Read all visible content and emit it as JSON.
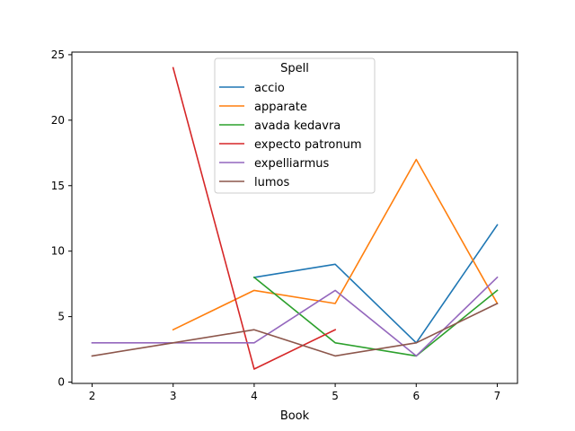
{
  "chart_data": {
    "type": "line",
    "title": "",
    "xlabel": "Book",
    "ylabel": "",
    "xlim": [
      1.75,
      7.25
    ],
    "ylim": [
      -0.1,
      25.2
    ],
    "xticks": [
      2,
      3,
      4,
      5,
      6,
      7
    ],
    "yticks": [
      0,
      5,
      10,
      15,
      20,
      25
    ],
    "grid": false,
    "legend": {
      "title": "Spell",
      "placement": "top-center"
    },
    "series": [
      {
        "name": "accio",
        "color": "#1f77b4",
        "points": [
          [
            4,
            8
          ],
          [
            5,
            9
          ],
          [
            6,
            3
          ],
          [
            7,
            12
          ]
        ]
      },
      {
        "name": "apparate",
        "color": "#ff7f0e",
        "points": [
          [
            3,
            4
          ],
          [
            4,
            7
          ],
          [
            5,
            6
          ],
          [
            6,
            17
          ],
          [
            7,
            6
          ]
        ]
      },
      {
        "name": "avada kedavra",
        "color": "#2ca02c",
        "points": [
          [
            4,
            8
          ],
          [
            5,
            3
          ],
          [
            6,
            2
          ],
          [
            7,
            7
          ]
        ]
      },
      {
        "name": "expecto patronum",
        "color": "#d62728",
        "points": [
          [
            3,
            24
          ],
          [
            4,
            1
          ],
          [
            5,
            4
          ]
        ]
      },
      {
        "name": "expelliarmus",
        "color": "#9467bd",
        "points": [
          [
            2,
            3
          ],
          [
            3,
            3
          ],
          [
            4,
            3
          ],
          [
            5,
            7
          ],
          [
            6,
            2
          ],
          [
            7,
            8
          ]
        ]
      },
      {
        "name": "lumos",
        "color": "#8c564b",
        "points": [
          [
            2,
            2
          ],
          [
            3,
            3
          ],
          [
            4,
            4
          ],
          [
            5,
            2
          ],
          [
            6,
            3
          ],
          [
            7,
            6
          ]
        ]
      }
    ]
  }
}
